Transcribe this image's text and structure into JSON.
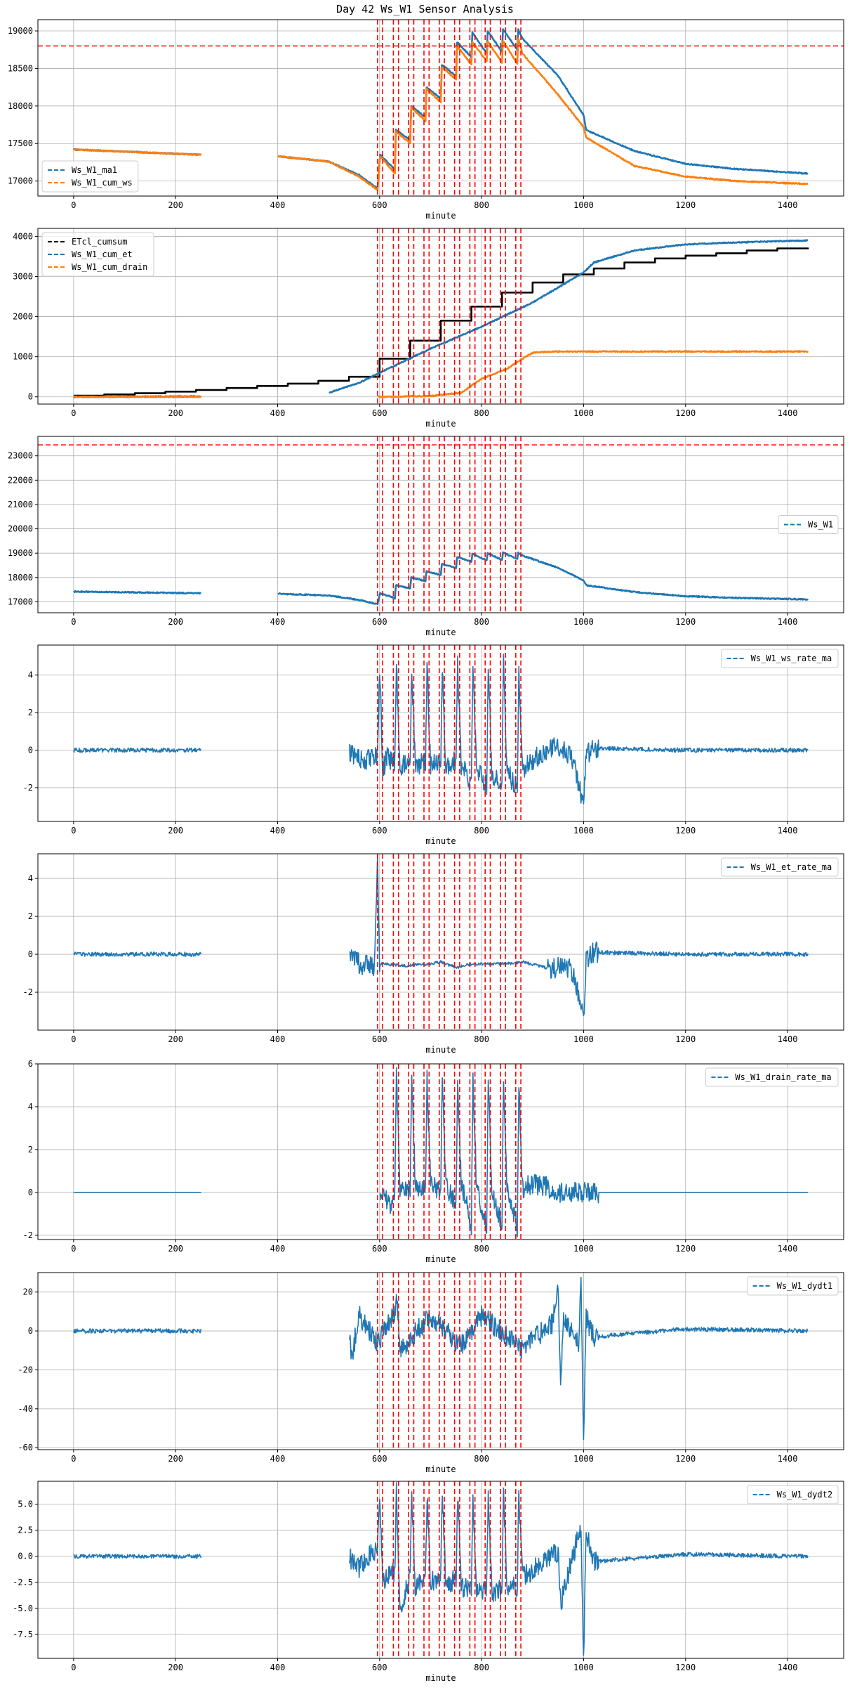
{
  "figure_title": "Day 42 Ws_W1 Sensor Analysis",
  "colors": {
    "blue": "#1f77b4",
    "orange": "#ff7f0e",
    "black": "#000000",
    "red": "#ff0000",
    "grid": "#b0b0b0"
  },
  "chart_data": [
    {
      "type": "line",
      "xlabel": "minute",
      "xlim": [
        -70,
        1510
      ],
      "ylim": [
        16800,
        19150
      ],
      "xticks": [
        0,
        200,
        400,
        600,
        800,
        1000,
        1200,
        1400
      ],
      "yticks": [
        17000,
        17500,
        18000,
        18500,
        19000
      ],
      "hline": 18800,
      "event_lines": [
        596,
        606,
        627,
        637,
        657,
        667,
        687,
        697,
        717,
        727,
        747,
        757,
        777,
        787,
        807,
        817,
        837,
        847,
        867,
        877
      ],
      "legend": {
        "position": "lower-left",
        "entries": [
          "Ws_W1_ma1",
          "Ws_W1_cum_ws"
        ]
      },
      "series": [
        {
          "name": "Ws_W1_ma1",
          "color": "blue",
          "x": [
            0,
            250,
            270,
            400,
            500,
            560,
            596,
            601,
            630,
            632,
            660,
            662,
            690,
            692,
            720,
            722,
            750,
            752,
            780,
            782,
            810,
            812,
            840,
            842,
            870,
            872,
            880,
            950,
            1000,
            1005,
            1100,
            1200,
            1300,
            1440
          ],
          "y": [
            17420,
            17350,
            null,
            17330,
            17260,
            17080,
            16900,
            17350,
            17150,
            17680,
            17550,
            18000,
            17850,
            18250,
            18100,
            18550,
            18400,
            18850,
            18650,
            18980,
            18700,
            19000,
            18720,
            19020,
            18750,
            19020,
            18900,
            18400,
            17880,
            17680,
            17400,
            17230,
            17160,
            17100
          ]
        },
        {
          "name": "Ws_W1_cum_ws",
          "color": "orange",
          "x": [
            0,
            250,
            270,
            400,
            500,
            560,
            596,
            601,
            630,
            632,
            660,
            662,
            690,
            692,
            720,
            722,
            750,
            752,
            780,
            782,
            810,
            812,
            840,
            842,
            870,
            872,
            880,
            950,
            1000,
            1005,
            1100,
            1200,
            1300,
            1440
          ],
          "y": [
            17420,
            17350,
            null,
            17330,
            17260,
            17060,
            16880,
            17330,
            17100,
            17660,
            17500,
            17980,
            17800,
            18230,
            18050,
            18520,
            18350,
            18800,
            18550,
            18850,
            18600,
            18860,
            18580,
            18870,
            18560,
            18900,
            18700,
            18150,
            17720,
            17580,
            17200,
            17060,
            17000,
            16960
          ]
        }
      ]
    },
    {
      "type": "line",
      "xlabel": "minute",
      "xlim": [
        -70,
        1510
      ],
      "ylim": [
        -180,
        4200
      ],
      "xticks": [
        0,
        200,
        400,
        600,
        800,
        1000,
        1200,
        1400
      ],
      "yticks": [
        0,
        1000,
        2000,
        3000,
        4000
      ],
      "event_lines": [
        596,
        606,
        627,
        637,
        657,
        667,
        687,
        697,
        717,
        727,
        747,
        757,
        777,
        787,
        807,
        817,
        837,
        847,
        867,
        877
      ],
      "legend": {
        "position": "upper-left",
        "entries": [
          "ETcl_cumsum",
          "Ws_W1_cum_et",
          "Ws_W1_cum_drain"
        ]
      },
      "series": [
        {
          "name": "ETcl_cumsum",
          "color": "black",
          "step": true,
          "x": [
            0,
            60,
            120,
            180,
            240,
            300,
            360,
            420,
            480,
            540,
            600,
            660,
            720,
            780,
            840,
            900,
            960,
            1020,
            1080,
            1140,
            1200,
            1260,
            1320,
            1380,
            1440
          ],
          "y": [
            30,
            60,
            90,
            130,
            170,
            220,
            270,
            330,
            400,
            500,
            950,
            1400,
            1900,
            2250,
            2600,
            2850,
            3050,
            3200,
            3350,
            3450,
            3520,
            3580,
            3650,
            3700,
            3720
          ]
        },
        {
          "name": "Ws_W1_cum_et",
          "color": "blue",
          "x": [
            0,
            250,
            270,
            500,
            560,
            600,
            700,
            800,
            900,
            1000,
            1020,
            1100,
            1200,
            1300,
            1440
          ],
          "y": [
            0,
            10,
            null,
            100,
            350,
            600,
            1200,
            1750,
            2350,
            3100,
            3350,
            3650,
            3800,
            3850,
            3900
          ]
        },
        {
          "name": "Ws_W1_cum_drain",
          "color": "orange",
          "x": [
            0,
            250,
            270,
            596,
            700,
            760,
            800,
            850,
            880,
            900,
            940,
            1000,
            1200,
            1440
          ],
          "y": [
            0,
            0,
            null,
            0,
            20,
            100,
            450,
            700,
            950,
            1100,
            1130,
            1130,
            1130,
            1130
          ]
        }
      ]
    },
    {
      "type": "line",
      "xlabel": "minute",
      "xlim": [
        -70,
        1510
      ],
      "ylim": [
        16550,
        23800
      ],
      "xticks": [
        0,
        200,
        400,
        600,
        800,
        1000,
        1200,
        1400
      ],
      "yticks": [
        17000,
        18000,
        19000,
        20000,
        21000,
        22000,
        23000
      ],
      "hline": 23450,
      "event_lines": [
        596,
        606,
        627,
        637,
        657,
        667,
        687,
        697,
        717,
        727,
        747,
        757,
        777,
        787,
        807,
        817,
        837,
        847,
        867,
        877
      ],
      "legend": {
        "position": "center-right",
        "entries": [
          "Ws_W1"
        ]
      },
      "series": [
        {
          "name": "Ws_W1",
          "color": "blue",
          "x": [
            0,
            250,
            270,
            400,
            500,
            560,
            596,
            601,
            630,
            632,
            660,
            662,
            690,
            692,
            720,
            722,
            750,
            752,
            780,
            782,
            810,
            812,
            840,
            842,
            870,
            872,
            880,
            950,
            1000,
            1005,
            1100,
            1200,
            1300,
            1440
          ],
          "y": [
            17420,
            17350,
            null,
            17330,
            17260,
            17080,
            16900,
            17350,
            17150,
            17680,
            17550,
            18000,
            17850,
            18250,
            18100,
            18550,
            18400,
            18850,
            18650,
            18980,
            18700,
            19000,
            18720,
            19020,
            18750,
            19020,
            18900,
            18400,
            17880,
            17680,
            17400,
            17230,
            17160,
            17100
          ]
        }
      ]
    },
    {
      "type": "line",
      "xlabel": "minute",
      "xlim": [
        -70,
        1510
      ],
      "ylim": [
        -3.8,
        5.6
      ],
      "xticks": [
        0,
        200,
        400,
        600,
        800,
        1000,
        1200,
        1400
      ],
      "yticks": [
        -2,
        0,
        2,
        4
      ],
      "event_lines": [
        596,
        606,
        627,
        637,
        657,
        667,
        687,
        697,
        717,
        727,
        747,
        757,
        777,
        787,
        807,
        817,
        837,
        847,
        867,
        877
      ],
      "legend": {
        "position": "upper-right",
        "entries": [
          "Ws_W1_ws_rate_ma"
        ]
      },
      "series": [
        {
          "name": "Ws_W1_ws_rate_ma",
          "color": "blue",
          "x": [
            0,
            250,
            270,
            540,
            560,
            596,
            600,
            606,
            615,
            630,
            633,
            640,
            660,
            663,
            670,
            690,
            693,
            700,
            720,
            723,
            730,
            750,
            753,
            760,
            780,
            783,
            790,
            810,
            813,
            820,
            840,
            843,
            850,
            870,
            873,
            880,
            900,
            950,
            980,
            1000,
            1005,
            1020,
            1200,
            1440
          ],
          "y": [
            0,
            0,
            null,
            0,
            -0.5,
            -0.4,
            4.5,
            -1.0,
            -0.4,
            -0.6,
            4.6,
            -0.9,
            -0.6,
            4.5,
            -0.8,
            -0.6,
            4.5,
            -0.8,
            -0.6,
            4.5,
            -1.0,
            -0.5,
            4.6,
            -0.8,
            -1.8,
            4.6,
            -1.0,
            -1.9,
            4.6,
            -1.2,
            -1.8,
            4.6,
            -1.2,
            -2.0,
            4.6,
            -1.0,
            -0.5,
            0.2,
            -0.5,
            -2.9,
            -0.3,
            0.1,
            0,
            0
          ]
        }
      ]
    },
    {
      "type": "line",
      "xlabel": "minute",
      "xlim": [
        -70,
        1510
      ],
      "ylim": [
        -4.0,
        5.3
      ],
      "xticks": [
        0,
        200,
        400,
        600,
        800,
        1000,
        1200,
        1400
      ],
      "yticks": [
        -2,
        0,
        2,
        4
      ],
      "event_lines": [
        596,
        606,
        627,
        637,
        657,
        667,
        687,
        697,
        717,
        727,
        747,
        757,
        777,
        787,
        807,
        817,
        837,
        847,
        867,
        877
      ],
      "legend": {
        "position": "upper-right",
        "entries": [
          "Ws_W1_et_rate_ma"
        ]
      },
      "series": [
        {
          "name": "Ws_W1_et_rate_ma",
          "color": "blue",
          "x": [
            0,
            250,
            270,
            540,
            560,
            590,
            596,
            600,
            606,
            650,
            700,
            720,
            750,
            780,
            850,
            880,
            940,
            960,
            980,
            1000,
            1005,
            1020,
            1200,
            1440
          ],
          "y": [
            0,
            0,
            null,
            0,
            -0.5,
            -0.6,
            5.0,
            -0.5,
            -0.5,
            -0.6,
            -0.5,
            -0.4,
            -0.7,
            -0.5,
            -0.5,
            -0.4,
            -0.8,
            -0.5,
            -1.0,
            -3.3,
            -0.3,
            0.1,
            0,
            0
          ]
        }
      ]
    },
    {
      "type": "line",
      "xlabel": "minute",
      "xlim": [
        -70,
        1510
      ],
      "ylim": [
        -2.2,
        6.0
      ],
      "xticks": [
        0,
        200,
        400,
        600,
        800,
        1000,
        1200,
        1400
      ],
      "yticks": [
        -2,
        0,
        2,
        4,
        6
      ],
      "event_lines": [
        596,
        606,
        627,
        637,
        657,
        667,
        687,
        697,
        717,
        727,
        747,
        757,
        777,
        787,
        807,
        817,
        837,
        847,
        867,
        877
      ],
      "legend": {
        "position": "upper-right",
        "entries": [
          "Ws_W1_drain_rate_ma"
        ]
      },
      "series": [
        {
          "name": "Ws_W1_drain_rate_ma",
          "color": "blue",
          "x": [
            0,
            250,
            270,
            600,
            620,
            630,
            633,
            640,
            660,
            663,
            670,
            690,
            693,
            700,
            720,
            723,
            730,
            750,
            753,
            760,
            780,
            783,
            790,
            810,
            813,
            820,
            840,
            843,
            850,
            870,
            873,
            880,
            900,
            930,
            940,
            1200,
            1440
          ],
          "y": [
            0,
            0,
            null,
            0,
            -0.6,
            0.1,
            5.5,
            0.2,
            0.1,
            5.5,
            0.3,
            0.1,
            5.5,
            0.4,
            0,
            5.5,
            0.3,
            -0.5,
            5.3,
            0.4,
            -1.5,
            5.3,
            0.3,
            -1.7,
            5.3,
            0.2,
            -1.6,
            5.3,
            0.1,
            -1.6,
            5.0,
            0.2,
            0.4,
            0.3,
            0,
            0,
            0
          ]
        }
      ]
    },
    {
      "type": "line",
      "xlabel": "minute",
      "xlim": [
        -70,
        1510
      ],
      "ylim": [
        -61,
        30
      ],
      "xticks": [
        0,
        200,
        400,
        600,
        800,
        1000,
        1200,
        1400
      ],
      "yticks": [
        -60,
        -40,
        -20,
        0,
        20
      ],
      "event_lines": [
        596,
        606,
        627,
        637,
        657,
        667,
        687,
        697,
        717,
        727,
        747,
        757,
        777,
        787,
        807,
        817,
        837,
        847,
        867,
        877
      ],
      "legend": {
        "position": "upper-right",
        "entries": [
          "Ws_W1_dydt1"
        ]
      },
      "series": [
        {
          "name": "Ws_W1_dydt1",
          "color": "blue",
          "x": [
            0,
            250,
            270,
            540,
            545,
            560,
            596,
            630,
            634,
            640,
            700,
            760,
            800,
            880,
            940,
            950,
            955,
            960,
            990,
            995,
            1000,
            1005,
            1020,
            1200,
            1440
          ],
          "y": [
            0,
            0,
            null,
            0,
            -14,
            8,
            -6,
            10,
            17,
            -10,
            8,
            -8,
            8,
            -9,
            4,
            26,
            -28,
            5,
            -6,
            23,
            -57,
            7,
            -3,
            1,
            0
          ]
        }
      ]
    },
    {
      "type": "line",
      "xlabel": "minute",
      "xlim": [
        -70,
        1510
      ],
      "ylim": [
        -9.8,
        7.2
      ],
      "xticks": [
        0,
        200,
        400,
        600,
        800,
        1000,
        1200,
        1400
      ],
      "yticks": [
        -7.5,
        -5.0,
        -2.5,
        0.0,
        2.5,
        5.0
      ],
      "event_lines": [
        596,
        606,
        627,
        637,
        657,
        667,
        687,
        697,
        717,
        727,
        747,
        757,
        777,
        787,
        807,
        817,
        837,
        847,
        867,
        877
      ],
      "legend": {
        "position": "upper-right",
        "entries": [
          "Ws_W1_dydt2"
        ]
      },
      "series": [
        {
          "name": "Ws_W1_dydt2",
          "color": "blue",
          "x": [
            0,
            250,
            270,
            540,
            560,
            596,
            600,
            606,
            630,
            633,
            640,
            660,
            663,
            670,
            690,
            693,
            700,
            720,
            723,
            730,
            750,
            753,
            760,
            780,
            783,
            790,
            810,
            813,
            820,
            840,
            843,
            850,
            870,
            873,
            880,
            950,
            955,
            995,
            1000,
            1005,
            1020,
            1200,
            1440
          ],
          "y": [
            0,
            0,
            null,
            0,
            -1.2,
            1.0,
            5.8,
            -2.5,
            -1.5,
            6.2,
            -5.0,
            -2.0,
            6.0,
            -3.0,
            -2.0,
            5.8,
            -2.5,
            -2.0,
            6.0,
            -3.0,
            -2.0,
            6.2,
            -3.0,
            -3.0,
            6.2,
            -3.5,
            -3.0,
            6.2,
            -3.5,
            -3.0,
            6.2,
            -3.0,
            -3.0,
            6.0,
            -2.0,
            0.5,
            -4.5,
            3.0,
            -9.8,
            2.5,
            -0.5,
            0.2,
            0
          ]
        }
      ]
    }
  ]
}
